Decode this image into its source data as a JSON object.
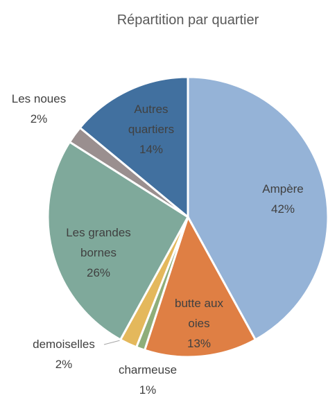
{
  "chart_data": {
    "type": "pie",
    "title": "Répartition par quartier",
    "categories": [
      "Ampère",
      "butte aux oies",
      "charmeuse",
      "demoiselles",
      "Les grandes bornes",
      "Les noues",
      "Autres quartiers"
    ],
    "values": [
      42,
      13,
      1,
      2,
      26,
      2,
      14
    ],
    "value_labels": [
      "42%",
      "13%",
      "1%",
      "2%",
      "26%",
      "2%",
      "14%"
    ],
    "colors": [
      "#95b3d7",
      "#df7f44",
      "#8fae7a",
      "#e4b85c",
      "#7fa99b",
      "#9a8f8f",
      "#41709f"
    ]
  }
}
